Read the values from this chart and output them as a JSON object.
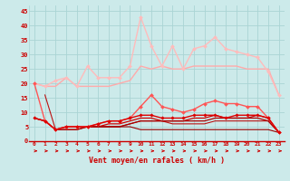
{
  "x": [
    0,
    1,
    2,
    3,
    4,
    5,
    6,
    7,
    8,
    9,
    10,
    11,
    12,
    13,
    14,
    15,
    16,
    17,
    18,
    19,
    20,
    21,
    22,
    23
  ],
  "lines": [
    {
      "y": [
        20,
        19,
        19,
        22,
        19,
        19,
        19,
        19,
        20,
        21,
        26,
        25,
        26,
        25,
        25,
        26,
        26,
        26,
        26,
        26,
        25,
        25,
        25,
        16
      ],
      "color": "#ffaaaa",
      "marker": null,
      "lw": 1.0,
      "zorder": 2
    },
    {
      "y": [
        20,
        19,
        21,
        22,
        19,
        26,
        22,
        22,
        22,
        26,
        43,
        33,
        26,
        33,
        25,
        32,
        33,
        36,
        32,
        31,
        30,
        29,
        24,
        16
      ],
      "color": "#ffbbbb",
      "marker": "D",
      "ms": 2.0,
      "lw": 1.0,
      "zorder": 3
    },
    {
      "y": [
        20,
        7,
        4,
        5,
        5,
        5,
        6,
        7,
        7,
        8,
        12,
        16,
        12,
        11,
        10,
        11,
        13,
        14,
        13,
        13,
        12,
        12,
        8,
        3
      ],
      "color": "#ff5555",
      "marker": "D",
      "ms": 2.0,
      "lw": 1.0,
      "zorder": 4
    },
    {
      "y": [
        8,
        7,
        4,
        5,
        5,
        5,
        6,
        7,
        7,
        8,
        9,
        9,
        8,
        8,
        8,
        9,
        9,
        9,
        8,
        9,
        9,
        9,
        8,
        3
      ],
      "color": "#dd0000",
      "marker": "D",
      "ms": 1.8,
      "lw": 1.0,
      "zorder": 4
    },
    {
      "y": [
        8,
        7,
        4,
        5,
        5,
        5,
        5,
        6,
        6,
        7,
        8,
        8,
        7,
        7,
        7,
        8,
        8,
        9,
        8,
        8,
        8,
        9,
        8,
        3
      ],
      "color": "#cc0000",
      "marker": null,
      "lw": 0.9,
      "zorder": 3
    },
    {
      "y": [
        8,
        7,
        4,
        4,
        4,
        5,
        5,
        5,
        5,
        6,
        7,
        7,
        7,
        7,
        7,
        7,
        7,
        8,
        8,
        8,
        8,
        8,
        7,
        3
      ],
      "color": "#aa0000",
      "marker": null,
      "lw": 0.9,
      "zorder": 3
    },
    {
      "y": [
        null,
        16,
        4,
        4,
        4,
        5,
        5,
        5,
        5,
        6,
        7,
        7,
        7,
        6,
        6,
        6,
        6,
        7,
        7,
        7,
        7,
        7,
        7,
        3
      ],
      "color": "#bb1111",
      "marker": null,
      "lw": 0.8,
      "zorder": 2
    },
    {
      "y": [
        null,
        null,
        null,
        null,
        null,
        5,
        5,
        5,
        5,
        5,
        4,
        4,
        4,
        4,
        4,
        4,
        4,
        4,
        4,
        4,
        4,
        4,
        4,
        3
      ],
      "color": "#990000",
      "marker": null,
      "lw": 0.8,
      "zorder": 2
    }
  ],
  "xlabel": "Vent moyen/en rafales ( km/h )",
  "xlim": [
    -0.5,
    23.5
  ],
  "ylim": [
    0,
    47
  ],
  "yticks": [
    0,
    5,
    10,
    15,
    20,
    25,
    30,
    35,
    40,
    45
  ],
  "xticks": [
    0,
    1,
    2,
    3,
    4,
    5,
    6,
    7,
    8,
    9,
    10,
    11,
    12,
    13,
    14,
    15,
    16,
    17,
    18,
    19,
    20,
    21,
    22,
    23
  ],
  "bg_color": "#cceaea",
  "grid_color": "#aad4d4",
  "tick_color": "#cc0000",
  "label_color": "#cc0000"
}
